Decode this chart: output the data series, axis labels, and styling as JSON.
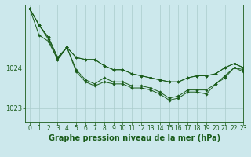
{
  "title": "Graphe pression niveau de la mer (hPa)",
  "background_color": "#cce8ec",
  "grid_color": "#aacccc",
  "line_color": "#1a5c1a",
  "xlim": [
    -0.5,
    23
  ],
  "ylim": [
    1022.65,
    1025.55
  ],
  "yticks": [
    1023,
    1024
  ],
  "xticks": [
    0,
    1,
    2,
    3,
    4,
    5,
    6,
    7,
    8,
    9,
    10,
    11,
    12,
    13,
    14,
    15,
    16,
    17,
    18,
    19,
    20,
    21,
    22,
    23
  ],
  "series": [
    [
      1025.45,
      1025.05,
      1024.75,
      1024.25,
      1024.5,
      1024.25,
      1024.2,
      1024.2,
      1024.05,
      1023.95,
      1023.95,
      1023.85,
      1023.8,
      1023.75,
      1023.7,
      1023.65,
      1023.65,
      1023.75,
      1023.8,
      1023.8,
      1023.85,
      1024.0,
      1024.1,
      1024.0
    ],
    [
      1025.45,
      1025.05,
      1024.7,
      1024.2,
      1024.5,
      1023.95,
      1023.7,
      1023.6,
      1023.75,
      1023.65,
      1023.65,
      1023.55,
      1023.55,
      1023.5,
      1023.4,
      1023.25,
      1023.3,
      1023.45,
      1023.45,
      1023.45,
      1023.6,
      1023.8,
      1024.0,
      1023.95
    ],
    [
      1025.45,
      1024.8,
      1024.65,
      1024.2,
      1024.5,
      1023.9,
      1023.65,
      1023.55,
      1023.65,
      1023.6,
      1023.6,
      1023.5,
      1023.5,
      1023.45,
      1023.35,
      1023.2,
      1023.25,
      1023.4,
      1023.4,
      1023.35,
      1023.6,
      1023.75,
      1024.0,
      1023.9
    ],
    [
      1025.45,
      1025.05,
      1024.75,
      1024.25,
      1024.5,
      1024.25,
      1024.2,
      1024.2,
      1024.05,
      1023.95,
      1023.95,
      1023.85,
      1023.8,
      1023.75,
      1023.7,
      1023.65,
      1023.65,
      1023.75,
      1023.8,
      1023.8,
      1023.85,
      1024.0,
      1024.1,
      1024.0
    ]
  ],
  "tick_fontsize": 5.5,
  "title_fontsize": 7,
  "figsize": [
    3.2,
    2.0
  ],
  "dpi": 100
}
